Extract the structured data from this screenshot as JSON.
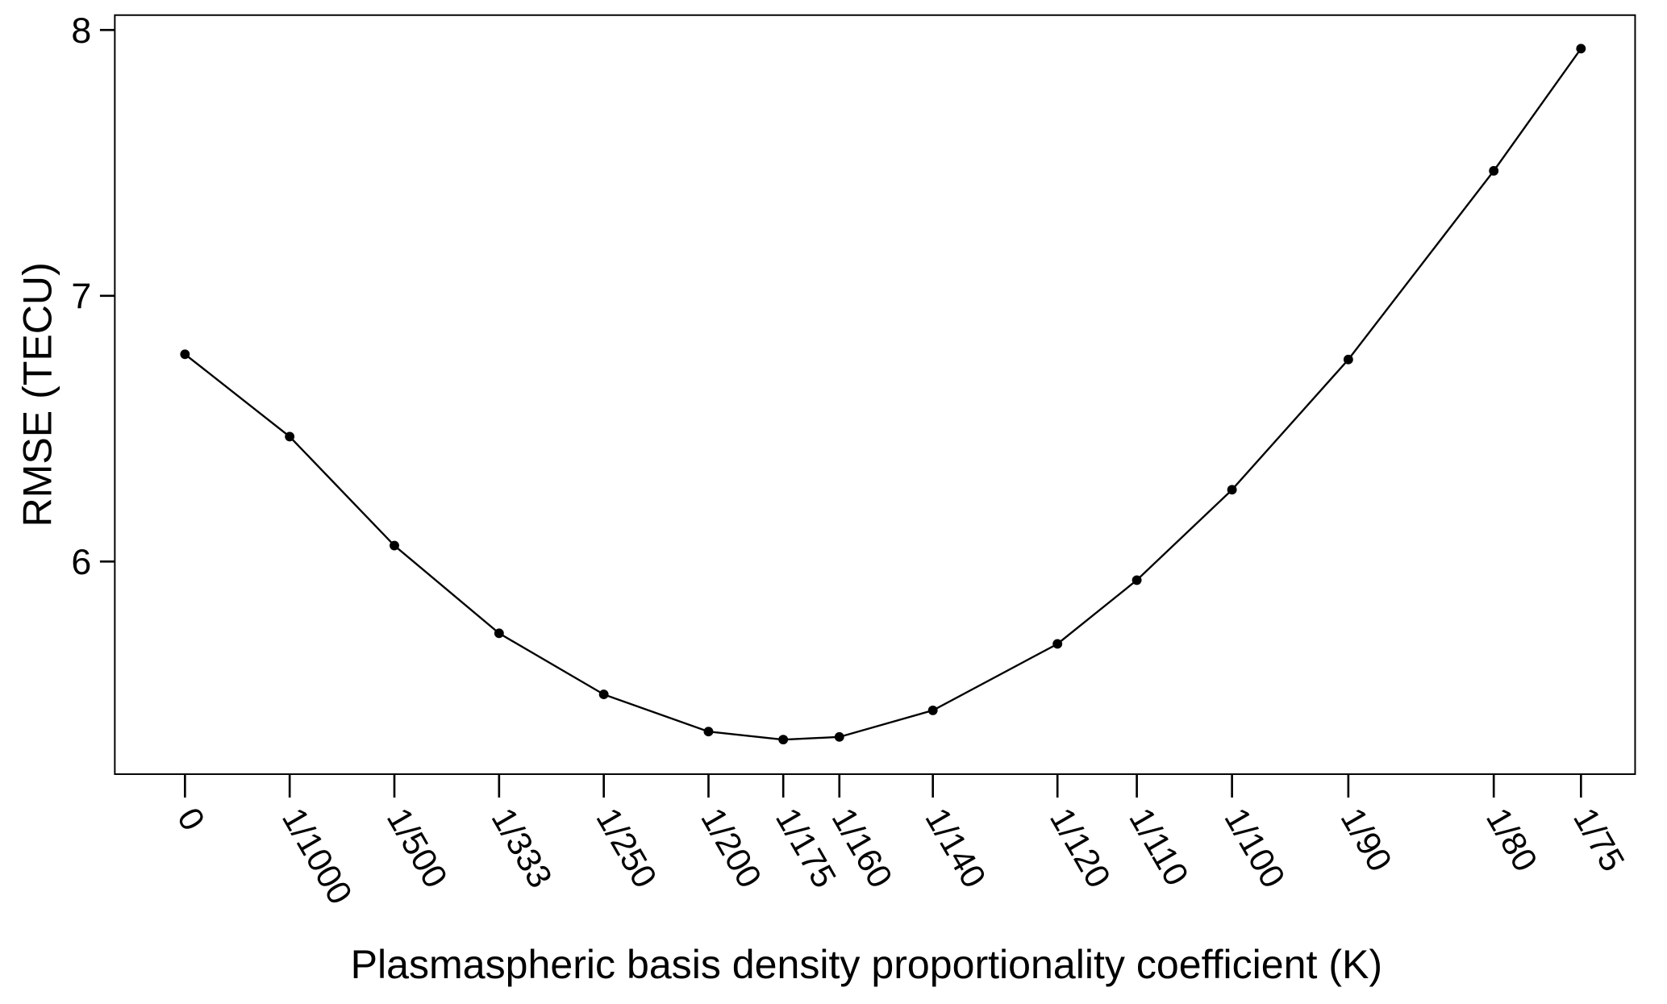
{
  "chart_data": {
    "type": "line",
    "title": "",
    "xlabel": "Plasmaspheric basis density proportionality coefficient (K)",
    "ylabel": "RMSE (TECU)",
    "x": [
      0,
      0.001,
      0.002,
      0.003,
      0.004,
      0.005,
      0.005714,
      0.00625,
      0.007143,
      0.008333,
      0.009091,
      0.01,
      0.011111,
      0.0125,
      0.013333
    ],
    "x_tick_labels": [
      "0",
      "1/1000",
      "1/500",
      "1/333",
      "1/250",
      "1/200",
      "1/175",
      "1/160",
      "1/140",
      "1/120",
      "1/110",
      "1/100",
      "1/90",
      "1/80",
      "1/75"
    ],
    "series": [
      {
        "name": "RMSE",
        "values": [
          6.78,
          6.47,
          6.06,
          5.73,
          5.5,
          5.36,
          5.33,
          5.34,
          5.44,
          5.69,
          5.93,
          6.27,
          6.76,
          7.47,
          7.93
        ]
      }
    ],
    "y_ticks": [
      6,
      7,
      8
    ],
    "y_tick_labels": [
      "6",
      "7",
      "8"
    ],
    "xlim": [
      -0.00067,
      0.01385
    ],
    "ylim": [
      5.2,
      8.056
    ],
    "grid": false,
    "legend": "none",
    "line_color": "#000000"
  }
}
